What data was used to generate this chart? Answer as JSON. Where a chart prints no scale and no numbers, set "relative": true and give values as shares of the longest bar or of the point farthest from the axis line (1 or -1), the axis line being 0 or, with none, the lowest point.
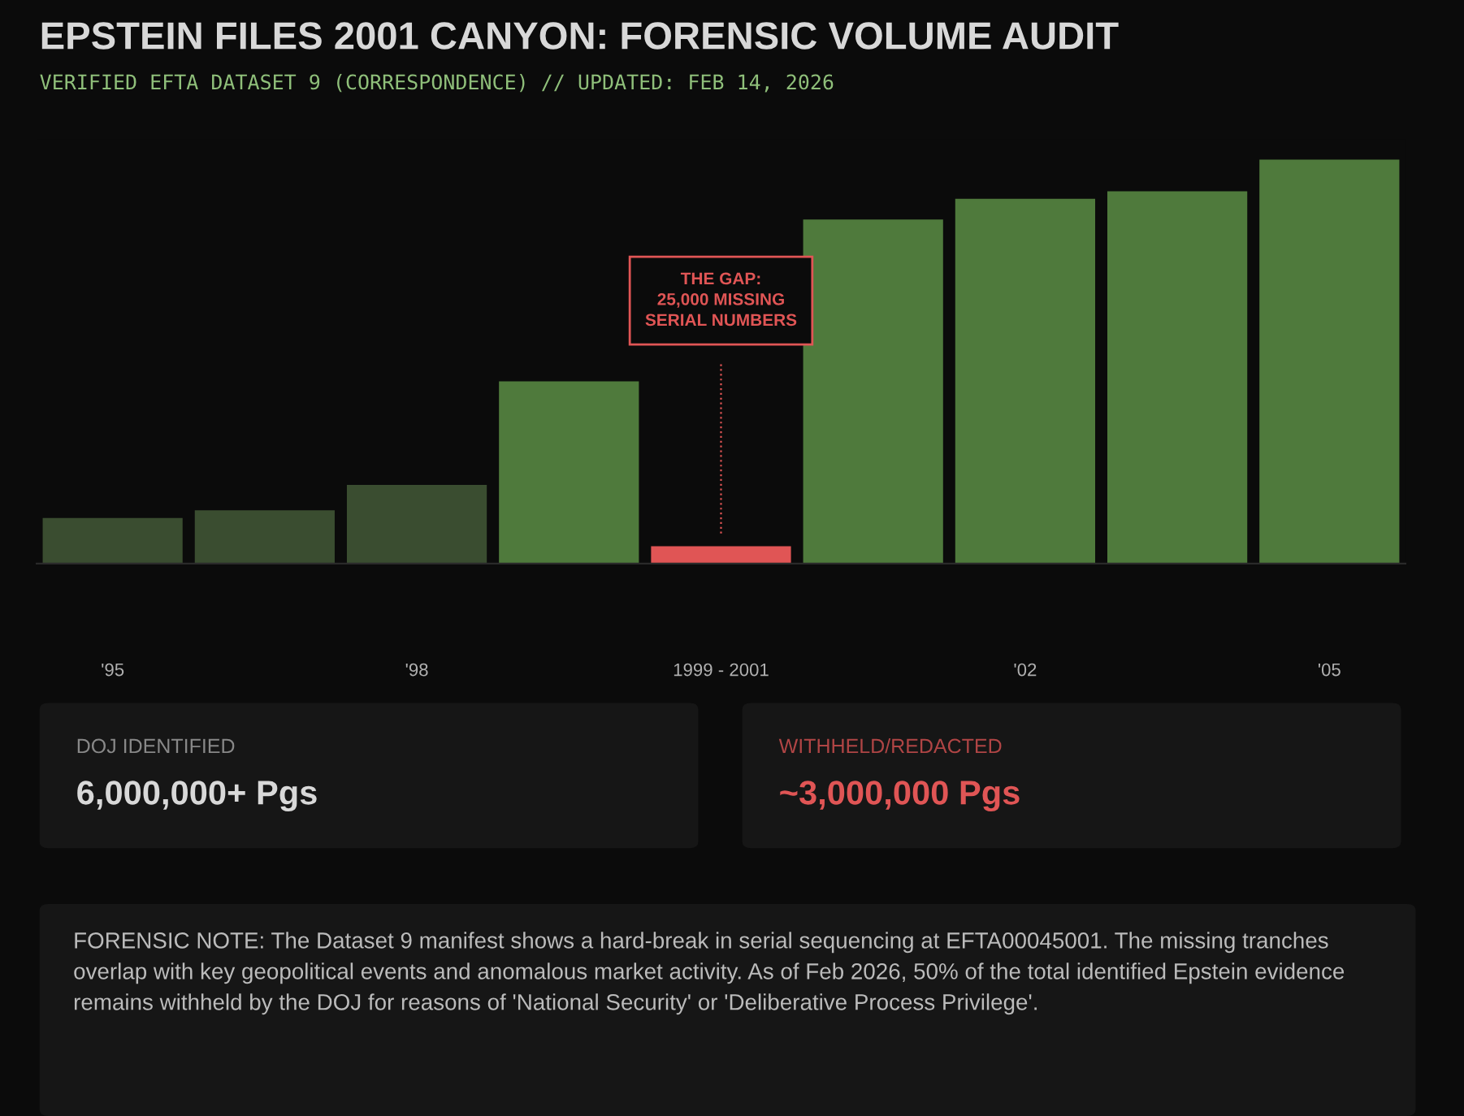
{
  "chart_data": {
    "type": "bar",
    "relative": true,
    "title": "EPSTEIN FILES 2001 CANYON: FORENSIC VOLUME AUDIT",
    "subtitle": "VERIFIED EFTA DATASET 9 (CORRESPONDENCE) // UPDATED: FEB 14, 2026",
    "categories": [
      "'95",
      null,
      "'98",
      null,
      "1999 - 2001",
      null,
      "'02",
      null,
      "'05"
    ],
    "values": [
      0.113,
      0.132,
      0.195,
      0.451,
      0.043,
      0.852,
      0.903,
      0.922,
      1.0
    ],
    "colors": [
      "#3a4d30",
      "#3a4d30",
      "#3a4d30",
      "#4f7a3c",
      "#e05555",
      "#4f7a3c",
      "#4f7a3c",
      "#4f7a3c",
      "#4f7a3c"
    ],
    "grid": false,
    "legend": false,
    "annotations": [
      "THE GAP:\n25,000 MISSING\nSERIAL NUMBERS",
      "DOJ IDENTIFIED",
      "6,000,000+ Pgs",
      "WITHHELD/REDACTED",
      "~3,000,000 Pgs",
      "FORENSIC NOTE: The Dataset 9 manifest shows a hard-break in serial sequencing at EFTA00045001. The missing tranches overlap with key geopolitical events and anomalous market activity. As of Feb 2026, 50% of the total identified Epstein evidence remains withheld by the DOJ for reasons of 'National Security' or 'Deliberative Process Privilege'."
    ]
  }
}
